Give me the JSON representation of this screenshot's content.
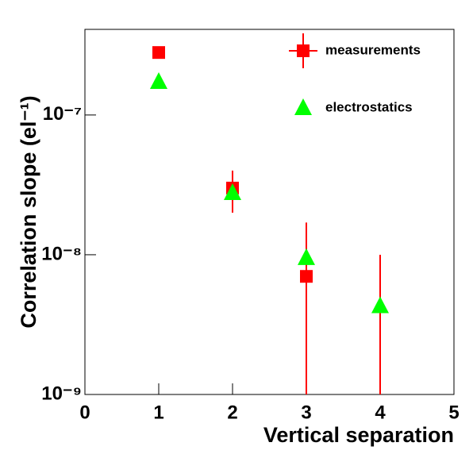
{
  "chart_data": {
    "type": "scatter",
    "x_label": "Vertical separation",
    "y_label": "Correlation slope (el⁻¹)",
    "xlim": [
      0,
      5
    ],
    "xticks": [
      0,
      1,
      2,
      3,
      4,
      5
    ],
    "ylim": [
      1e-09,
      4.1e-07
    ],
    "log_y": true,
    "yticks": [
      {
        "value": 1e-09,
        "label": "10⁻⁹"
      },
      {
        "value": 1e-08,
        "label": "10⁻⁸"
      },
      {
        "value": 1e-07,
        "label": "10⁻⁷"
      }
    ],
    "legend": "upper right",
    "series": [
      {
        "name": "measurements",
        "color": "#ff0000",
        "marker": "square",
        "x": [
          1,
          2,
          3,
          4
        ],
        "values": [
          2.8e-07,
          3e-08,
          7e-09,
          0
        ],
        "errors": [
          null,
          1e-08,
          1e-08,
          1e-08
        ]
      },
      {
        "name": "electrostatics",
        "color": "#00ff00",
        "marker": "triangle",
        "x": [
          1,
          2,
          3,
          4
        ],
        "values": [
          1.73e-07,
          2.77e-08,
          9.5e-09,
          4.3e-09
        ]
      }
    ]
  }
}
